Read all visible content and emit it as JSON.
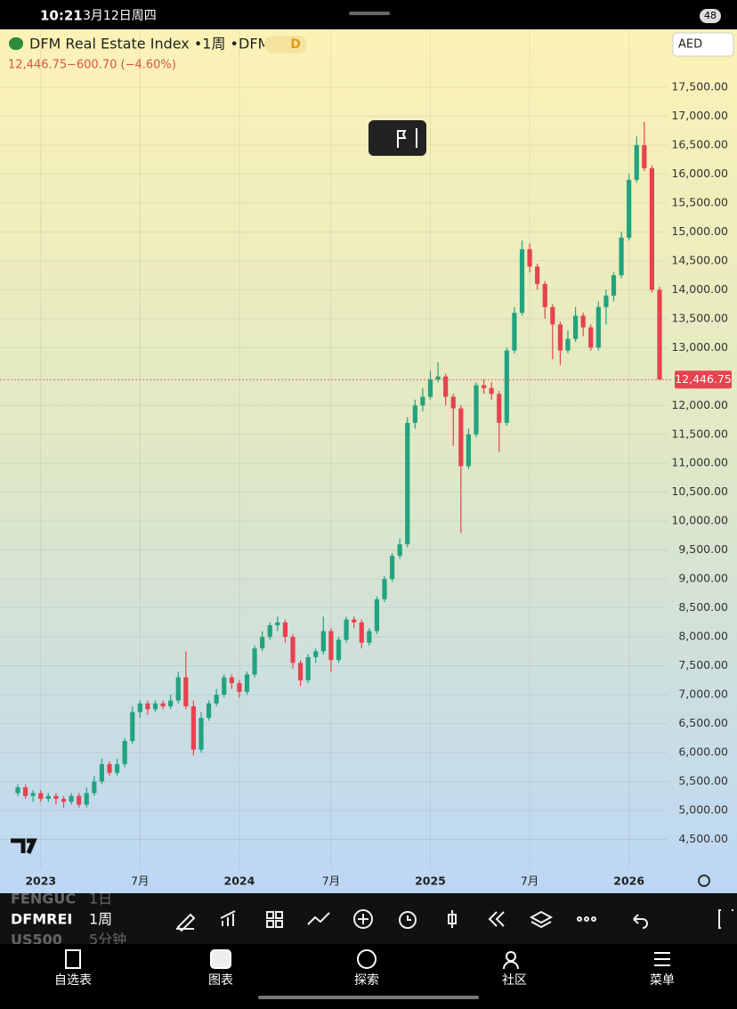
{
  "status_bar": {
    "time": "10:21",
    "date": "3月12日周四",
    "battery": "48"
  },
  "header": {
    "title": "DFM Real Estate Index •1周 •DFM",
    "interval_badge": "D",
    "price": "12,446.75",
    "change": "−600.70 (−4.60%)"
  },
  "currency": "AED",
  "chart_data": {
    "type": "candlestick",
    "categories": [
      null,
      null,
      null,
      "2023",
      null,
      null,
      null,
      null,
      null,
      null,
      null,
      null,
      null,
      null,
      null,
      null,
      "7月",
      null,
      null,
      null,
      null,
      null,
      null,
      null,
      null,
      null,
      null,
      null,
      null,
      "2024",
      null,
      "",
      null,
      null,
      null,
      null,
      null,
      null,
      null,
      null,
      null,
      "7月",
      null,
      null,
      null,
      null,
      null,
      null,
      null,
      null,
      null,
      null,
      null,
      null,
      "2025",
      null,
      null,
      null,
      null,
      null,
      null,
      null,
      null,
      null,
      null,
      null,
      null,
      "7月",
      null,
      null,
      null,
      null,
      null,
      null,
      null,
      null,
      null,
      null,
      null,
      null,
      "2026",
      null,
      null,
      null,
      null
    ],
    "ohlc": [
      [
        5300,
        5450,
        5250,
        5400
      ],
      [
        5400,
        5450,
        5200,
        5250
      ],
      [
        5250,
        5350,
        5150,
        5300
      ],
      [
        5300,
        5350,
        5150,
        5200
      ],
      [
        5200,
        5300,
        5150,
        5250
      ],
      [
        5250,
        5300,
        5100,
        5200
      ],
      [
        5200,
        5250,
        5050,
        5150
      ],
      [
        5150,
        5300,
        5100,
        5250
      ],
      [
        5250,
        5300,
        5050,
        5100
      ],
      [
        5100,
        5400,
        5050,
        5300
      ],
      [
        5300,
        5600,
        5250,
        5500
      ],
      [
        5500,
        5900,
        5450,
        5800
      ],
      [
        5800,
        5850,
        5600,
        5650
      ],
      [
        5650,
        5900,
        5600,
        5800
      ],
      [
        5800,
        6250,
        5750,
        6200
      ],
      [
        6200,
        6800,
        6150,
        6700
      ],
      [
        6700,
        6900,
        6600,
        6850
      ],
      [
        6850,
        6900,
        6650,
        6750
      ],
      [
        6750,
        6900,
        6700,
        6850
      ],
      [
        6850,
        6900,
        6750,
        6800
      ],
      [
        6800,
        7000,
        6750,
        6900
      ],
      [
        6900,
        7400,
        6850,
        7300
      ],
      [
        7300,
        7750,
        6750,
        6800
      ],
      [
        6800,
        6900,
        5950,
        6050
      ],
      [
        6050,
        6700,
        6000,
        6600
      ],
      [
        6600,
        6900,
        6550,
        6850
      ],
      [
        6850,
        7100,
        6800,
        7000
      ],
      [
        7000,
        7350,
        6950,
        7300
      ],
      [
        7300,
        7350,
        7100,
        7200
      ],
      [
        7200,
        7250,
        6950,
        7050
      ],
      [
        7050,
        7400,
        7000,
        7350
      ],
      [
        7350,
        7850,
        7300,
        7800
      ],
      [
        7800,
        8100,
        7750,
        8000
      ],
      [
        8000,
        8250,
        7950,
        8200
      ],
      [
        8200,
        8350,
        8100,
        8250
      ],
      [
        8250,
        8300,
        7900,
        8000
      ],
      [
        8000,
        8050,
        7450,
        7550
      ],
      [
        7550,
        7600,
        7150,
        7250
      ],
      [
        7250,
        7700,
        7200,
        7650
      ],
      [
        7650,
        7800,
        7550,
        7750
      ],
      [
        7750,
        8350,
        7700,
        8100
      ],
      [
        8100,
        8150,
        7400,
        7600
      ],
      [
        7600,
        8000,
        7550,
        7950
      ],
      [
        7950,
        8350,
        7900,
        8300
      ],
      [
        8300,
        8350,
        8150,
        8250
      ],
      [
        8250,
        8300,
        7800,
        7900
      ],
      [
        7900,
        8150,
        7850,
        8100
      ],
      [
        8100,
        8700,
        8050,
        8650
      ],
      [
        8650,
        9050,
        8600,
        9000
      ],
      [
        9000,
        9450,
        8950,
        9400
      ],
      [
        9400,
        9700,
        9350,
        9600
      ],
      [
        9600,
        11800,
        9550,
        11700
      ],
      [
        11700,
        12100,
        11600,
        12000
      ],
      [
        12000,
        12300,
        11900,
        12150
      ],
      [
        12150,
        12600,
        12100,
        12450
      ],
      [
        12450,
        12750,
        12400,
        12500
      ],
      [
        12500,
        12550,
        12000,
        12150
      ],
      [
        12150,
        12200,
        11300,
        11950
      ],
      [
        11950,
        12000,
        9800,
        10950
      ],
      [
        10950,
        11600,
        10900,
        11500
      ],
      [
        11500,
        12400,
        11450,
        12350
      ],
      [
        12350,
        12450,
        12200,
        12300
      ],
      [
        12300,
        12400,
        12100,
        12200
      ],
      [
        12200,
        12250,
        11200,
        11700
      ],
      [
        11700,
        13000,
        11650,
        12950
      ],
      [
        12950,
        13700,
        12900,
        13600
      ],
      [
        13600,
        14850,
        13550,
        14700
      ],
      [
        14700,
        14800,
        14300,
        14400
      ],
      [
        14400,
        14450,
        14000,
        14100
      ],
      [
        14100,
        14150,
        13500,
        13700
      ],
      [
        13700,
        13750,
        12800,
        13400
      ],
      [
        13400,
        13450,
        12700,
        12950
      ],
      [
        12950,
        13300,
        12900,
        13150
      ],
      [
        13150,
        13700,
        13100,
        13550
      ],
      [
        13550,
        13600,
        13200,
        13350
      ],
      [
        13350,
        13400,
        12950,
        13000
      ],
      [
        13000,
        13800,
        12950,
        13700
      ],
      [
        13700,
        14000,
        13400,
        13900
      ],
      [
        13900,
        14300,
        13800,
        14250
      ],
      [
        14250,
        15000,
        14200,
        14900
      ],
      [
        14900,
        16000,
        14850,
        15900
      ],
      [
        15900,
        16650,
        15850,
        16500
      ],
      [
        16500,
        16900,
        16050,
        16100
      ],
      [
        16100,
        16150,
        13950,
        14000
      ],
      [
        14000,
        14050,
        12446.75,
        12446.75
      ]
    ],
    "up_color": "#22a37f",
    "down_color": "#e5434f",
    "ylim": [
      4000,
      18500
    ],
    "yticks": [
      {
        "value": 4500,
        "label": "4,500.00"
      },
      {
        "value": 5000,
        "label": "5,000.00"
      },
      {
        "value": 5500,
        "label": "5,500.00"
      },
      {
        "value": 6000,
        "label": "6,000.00"
      },
      {
        "value": 6500,
        "label": "6,500.00"
      },
      {
        "value": 7000,
        "label": "7,000.00"
      },
      {
        "value": 7500,
        "label": "7,500.00"
      },
      {
        "value": 8000,
        "label": "8,000.00"
      },
      {
        "value": 8500,
        "label": "8,500.00"
      },
      {
        "value": 9000,
        "label": "9,000.00"
      },
      {
        "value": 9500,
        "label": "9,500.00"
      },
      {
        "value": 10000,
        "label": "10,000.00"
      },
      {
        "value": 10500,
        "label": "10,500.00"
      },
      {
        "value": 11000,
        "label": "11,000.00"
      },
      {
        "value": 11500,
        "label": "11,500.00"
      },
      {
        "value": 12000,
        "label": "12,000.00"
      },
      {
        "value": 13000,
        "label": "13,000.00"
      },
      {
        "value": 13500,
        "label": "13,500.00"
      },
      {
        "value": 14000,
        "label": "14,000.00"
      },
      {
        "value": 14500,
        "label": "14,500.00"
      },
      {
        "value": 15000,
        "label": "15,000.00"
      },
      {
        "value": 15500,
        "label": "15,500.00"
      },
      {
        "value": 16000,
        "label": "16,000.00"
      },
      {
        "value": 16500,
        "label": "16,500.00"
      },
      {
        "value": 17000,
        "label": "17,000.00"
      },
      {
        "value": 17500,
        "label": "17,500.00"
      }
    ],
    "last_price_label": "12,446.75",
    "grid": true
  },
  "bottom_toolbar": {
    "symbols": [
      {
        "symbol": "FENGUC",
        "interval": "1日"
      },
      {
        "symbol": "DFMREI",
        "interval": "1周"
      },
      {
        "symbol": "US500",
        "interval": "5分钟"
      }
    ]
  },
  "nav": [
    "自选表",
    "图表",
    "探索",
    "社区",
    "菜单"
  ]
}
